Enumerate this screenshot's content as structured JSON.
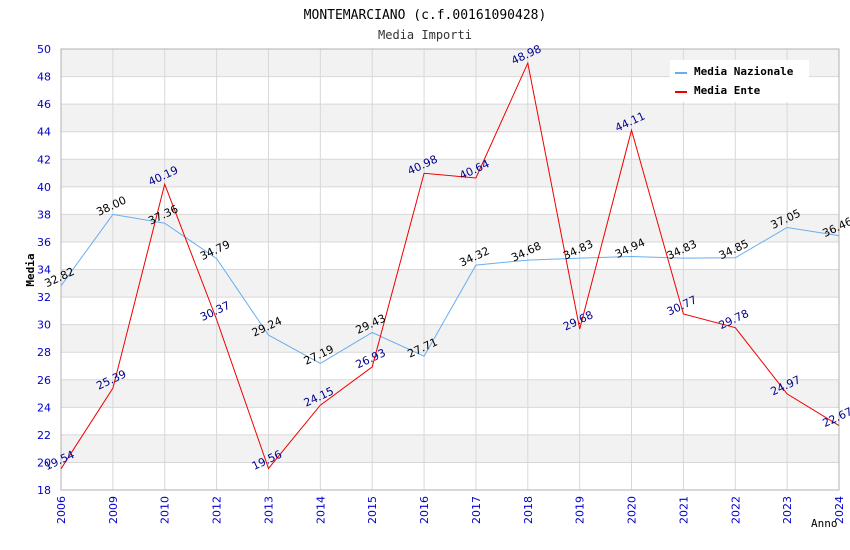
{
  "chart_data": {
    "type": "line",
    "title": "MONTEMARCIANO (c.f.00161090428)",
    "subtitle": "Media Importi",
    "xlabel": "Anno",
    "ylabel": "Media",
    "ylim": [
      18,
      50
    ],
    "ytick_step": 2,
    "grid": true,
    "legend_position": "top-right",
    "categories": [
      "2006",
      "2009",
      "2010",
      "2012",
      "2013",
      "2014",
      "2015",
      "2016",
      "2017",
      "2018",
      "2019",
      "2020",
      "2021",
      "2022",
      "2023",
      "2024"
    ],
    "series": [
      {
        "name": "Media Nazionale",
        "color": "#6aaef0",
        "label_color": "#000000",
        "values": [
          32.82,
          38.0,
          37.36,
          34.79,
          29.24,
          27.19,
          29.43,
          27.71,
          34.32,
          34.68,
          34.83,
          34.94,
          34.83,
          34.85,
          37.05,
          36.46
        ],
        "labels": [
          "32.82",
          "38.00",
          "37.36",
          "34.79",
          "29.24",
          "27.19",
          "29.43",
          "27.71",
          "34.32",
          "34.68",
          "34.83",
          "34.94",
          "34.83",
          "34.85",
          "37.05",
          "36.46"
        ]
      },
      {
        "name": "Media Ente",
        "color": "#ee0000",
        "label_color": "#00008b",
        "values": [
          19.54,
          25.39,
          40.19,
          30.37,
          19.56,
          24.15,
          26.93,
          40.98,
          40.64,
          48.98,
          29.68,
          44.11,
          30.77,
          29.78,
          24.97,
          22.67
        ],
        "labels": [
          "19.54",
          "25.39",
          "40.19",
          "30.37",
          "19.56",
          "24.15",
          "26.93",
          "40.98",
          "40.64",
          "48.98",
          "29.68",
          "44.11",
          "30.77",
          "29.78",
          "24.97",
          "22.67"
        ]
      }
    ]
  },
  "colors": {
    "tick_label": "#0000cc",
    "band": "#f2f2f2",
    "grid": "#d8d8d8",
    "axis": "#b0b0b0"
  }
}
